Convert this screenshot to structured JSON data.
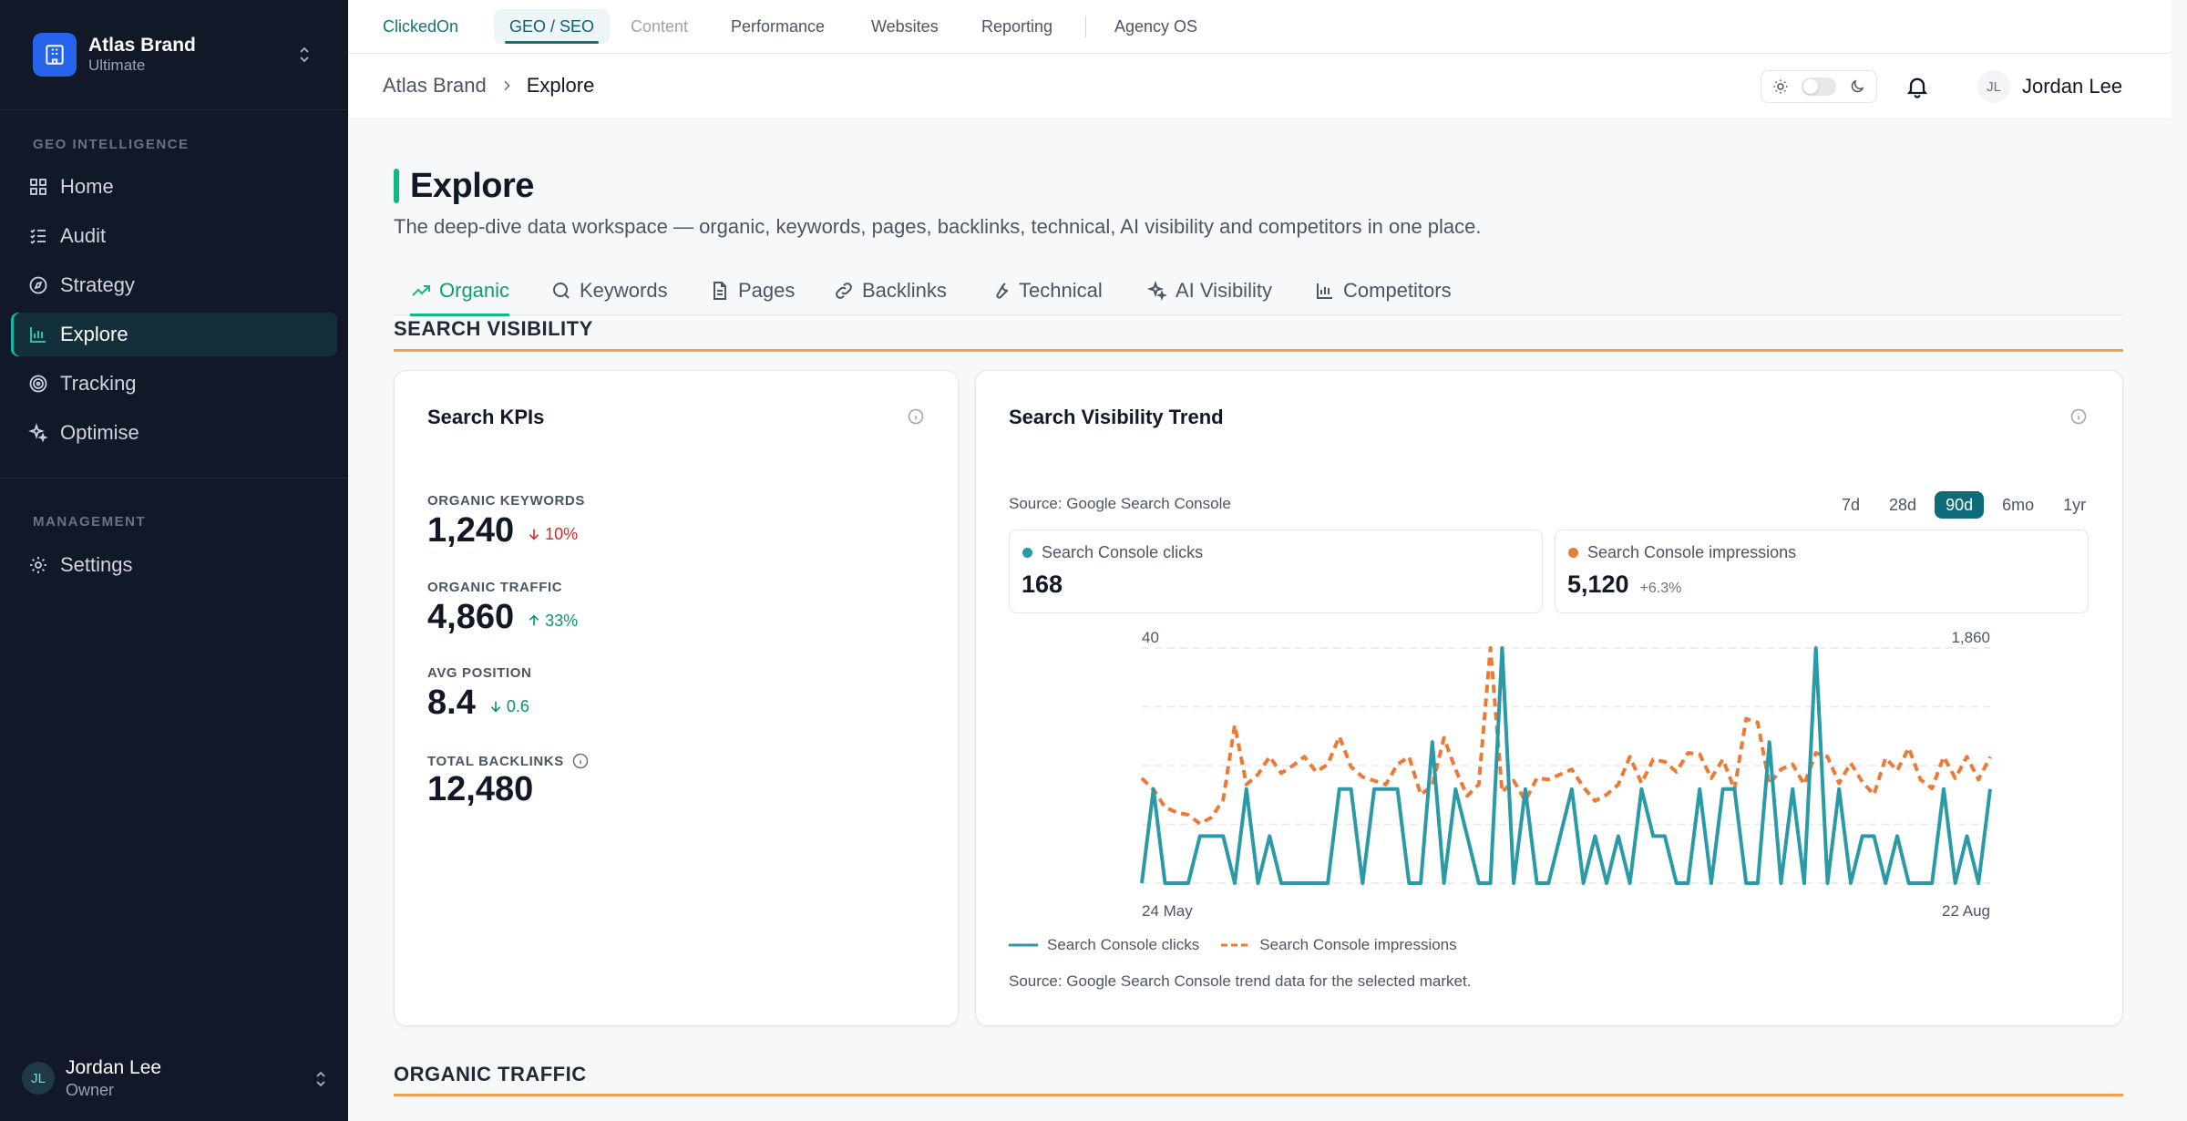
{
  "sidebar": {
    "brand_name": "Atlas Brand",
    "brand_plan": "Ultimate",
    "section_geo": "GEO INTELLIGENCE",
    "section_management": "MANAGEMENT",
    "items": [
      {
        "label": "Home",
        "icon": "grid-icon"
      },
      {
        "label": "Audit",
        "icon": "checklist-icon"
      },
      {
        "label": "Strategy",
        "icon": "compass-icon"
      },
      {
        "label": "Explore",
        "icon": "bar-chart-icon",
        "active": true
      },
      {
        "label": "Tracking",
        "icon": "target-icon"
      },
      {
        "label": "Optimise",
        "icon": "sparkles-icon"
      },
      {
        "label": "Settings",
        "icon": "gear-icon"
      }
    ],
    "user": {
      "initials": "JL",
      "name": "Jordan Lee",
      "role": "Owner"
    }
  },
  "topnav": {
    "items": [
      "ClickedOn",
      "GEO / SEO",
      "Content",
      "Performance",
      "Websites",
      "Reporting",
      "Agency OS"
    ],
    "active": "GEO / SEO"
  },
  "header": {
    "breadcrumb": [
      "Atlas Brand",
      "Explore"
    ],
    "user_initials": "JL",
    "user_name": "Jordan Lee"
  },
  "page": {
    "title": "Explore",
    "description": "The deep-dive data workspace — organic, keywords, pages, backlinks, technical, AI visibility and competitors in one place.",
    "tabs": [
      {
        "label": "Organic",
        "icon": "trending-up-icon",
        "active": true
      },
      {
        "label": "Keywords",
        "icon": "search-icon"
      },
      {
        "label": "Pages",
        "icon": "document-icon"
      },
      {
        "label": "Backlinks",
        "icon": "link-icon"
      },
      {
        "label": "Technical",
        "icon": "wrench-icon"
      },
      {
        "label": "AI Visibility",
        "icon": "sparkles-icon"
      },
      {
        "label": "Competitors",
        "icon": "bar-chart-icon"
      }
    ],
    "section_visibility": "SEARCH VISIBILITY",
    "section_organic": "ORGANIC TRAFFIC"
  },
  "kpis": {
    "title": "Search KPIs",
    "items": [
      {
        "label": "ORGANIC KEYWORDS",
        "value": "1,240",
        "delta": "10%",
        "direction": "down",
        "tone": "negative"
      },
      {
        "label": "ORGANIC TRAFFIC",
        "value": "4,860",
        "delta": "33%",
        "direction": "up",
        "tone": "positive"
      },
      {
        "label": "AVG POSITION",
        "value": "8.4",
        "delta": "0.6",
        "direction": "down",
        "tone": "positive"
      },
      {
        "label": "TOTAL BACKLINKS",
        "value": "12,480",
        "delta": "",
        "info": true
      }
    ]
  },
  "trend": {
    "title": "Search Visibility Trend",
    "source": "Source: Google Search Console",
    "ranges": [
      "7d",
      "28d",
      "90d",
      "6mo",
      "1yr"
    ],
    "active_range": "90d",
    "clicks": {
      "label": "Search Console clicks",
      "value": "168",
      "delta": ""
    },
    "impressions": {
      "label": "Search Console impressions",
      "value": "5,120",
      "delta": "+6.3%"
    },
    "footer": "Source: Google Search Console trend data for the selected market."
  },
  "colors": {
    "clicks": "#2a9aa6",
    "impressions": "#ea7a35",
    "accent": "#10b981",
    "brand": "#2563eb"
  },
  "chart_data": {
    "type": "line",
    "x_start_label": "24 May",
    "x_end_label": "22 Aug",
    "left_axis_top_label": "40",
    "right_axis_top_label": "1,860",
    "ylim_left": [
      0,
      40
    ],
    "ylim_right": [
      0,
      1860
    ],
    "grid": true,
    "series": [
      {
        "name": "Search Console clicks",
        "axis": "left",
        "style": "solid",
        "values": [
          0,
          16,
          0,
          0,
          0,
          8,
          8,
          8,
          0,
          16,
          0,
          8,
          0,
          0,
          0,
          0,
          0,
          16,
          16,
          0,
          16,
          16,
          16,
          0,
          0,
          24,
          0,
          16,
          8,
          0,
          0,
          40,
          0,
          16,
          0,
          0,
          8,
          16,
          0,
          8,
          0,
          8,
          0,
          16,
          8,
          8,
          0,
          0,
          16,
          0,
          16,
          16,
          0,
          0,
          24,
          0,
          16,
          0,
          40,
          0,
          16,
          0,
          8,
          8,
          0,
          8,
          0,
          0,
          0,
          16,
          0,
          8,
          0,
          16
        ]
      },
      {
        "name": "Search Console impressions",
        "axis": "right",
        "style": "dashed",
        "values": [
          830,
          740,
          600,
          560,
          540,
          470,
          520,
          660,
          1250,
          780,
          860,
          1000,
          870,
          930,
          1000,
          880,
          940,
          1160,
          920,
          840,
          810,
          780,
          940,
          1000,
          700,
          770,
          1150,
          900,
          690,
          780,
          1860,
          720,
          810,
          650,
          830,
          820,
          860,
          900,
          760,
          650,
          700,
          780,
          1000,
          790,
          980,
          960,
          880,
          1030,
          1020,
          830,
          980,
          740,
          1300,
          1270,
          780,
          900,
          940,
          780,
          1030,
          1000,
          790,
          950,
          800,
          700,
          990,
          890,
          1070,
          820,
          750,
          1000,
          830,
          1000,
          820,
          1000
        ]
      }
    ]
  }
}
